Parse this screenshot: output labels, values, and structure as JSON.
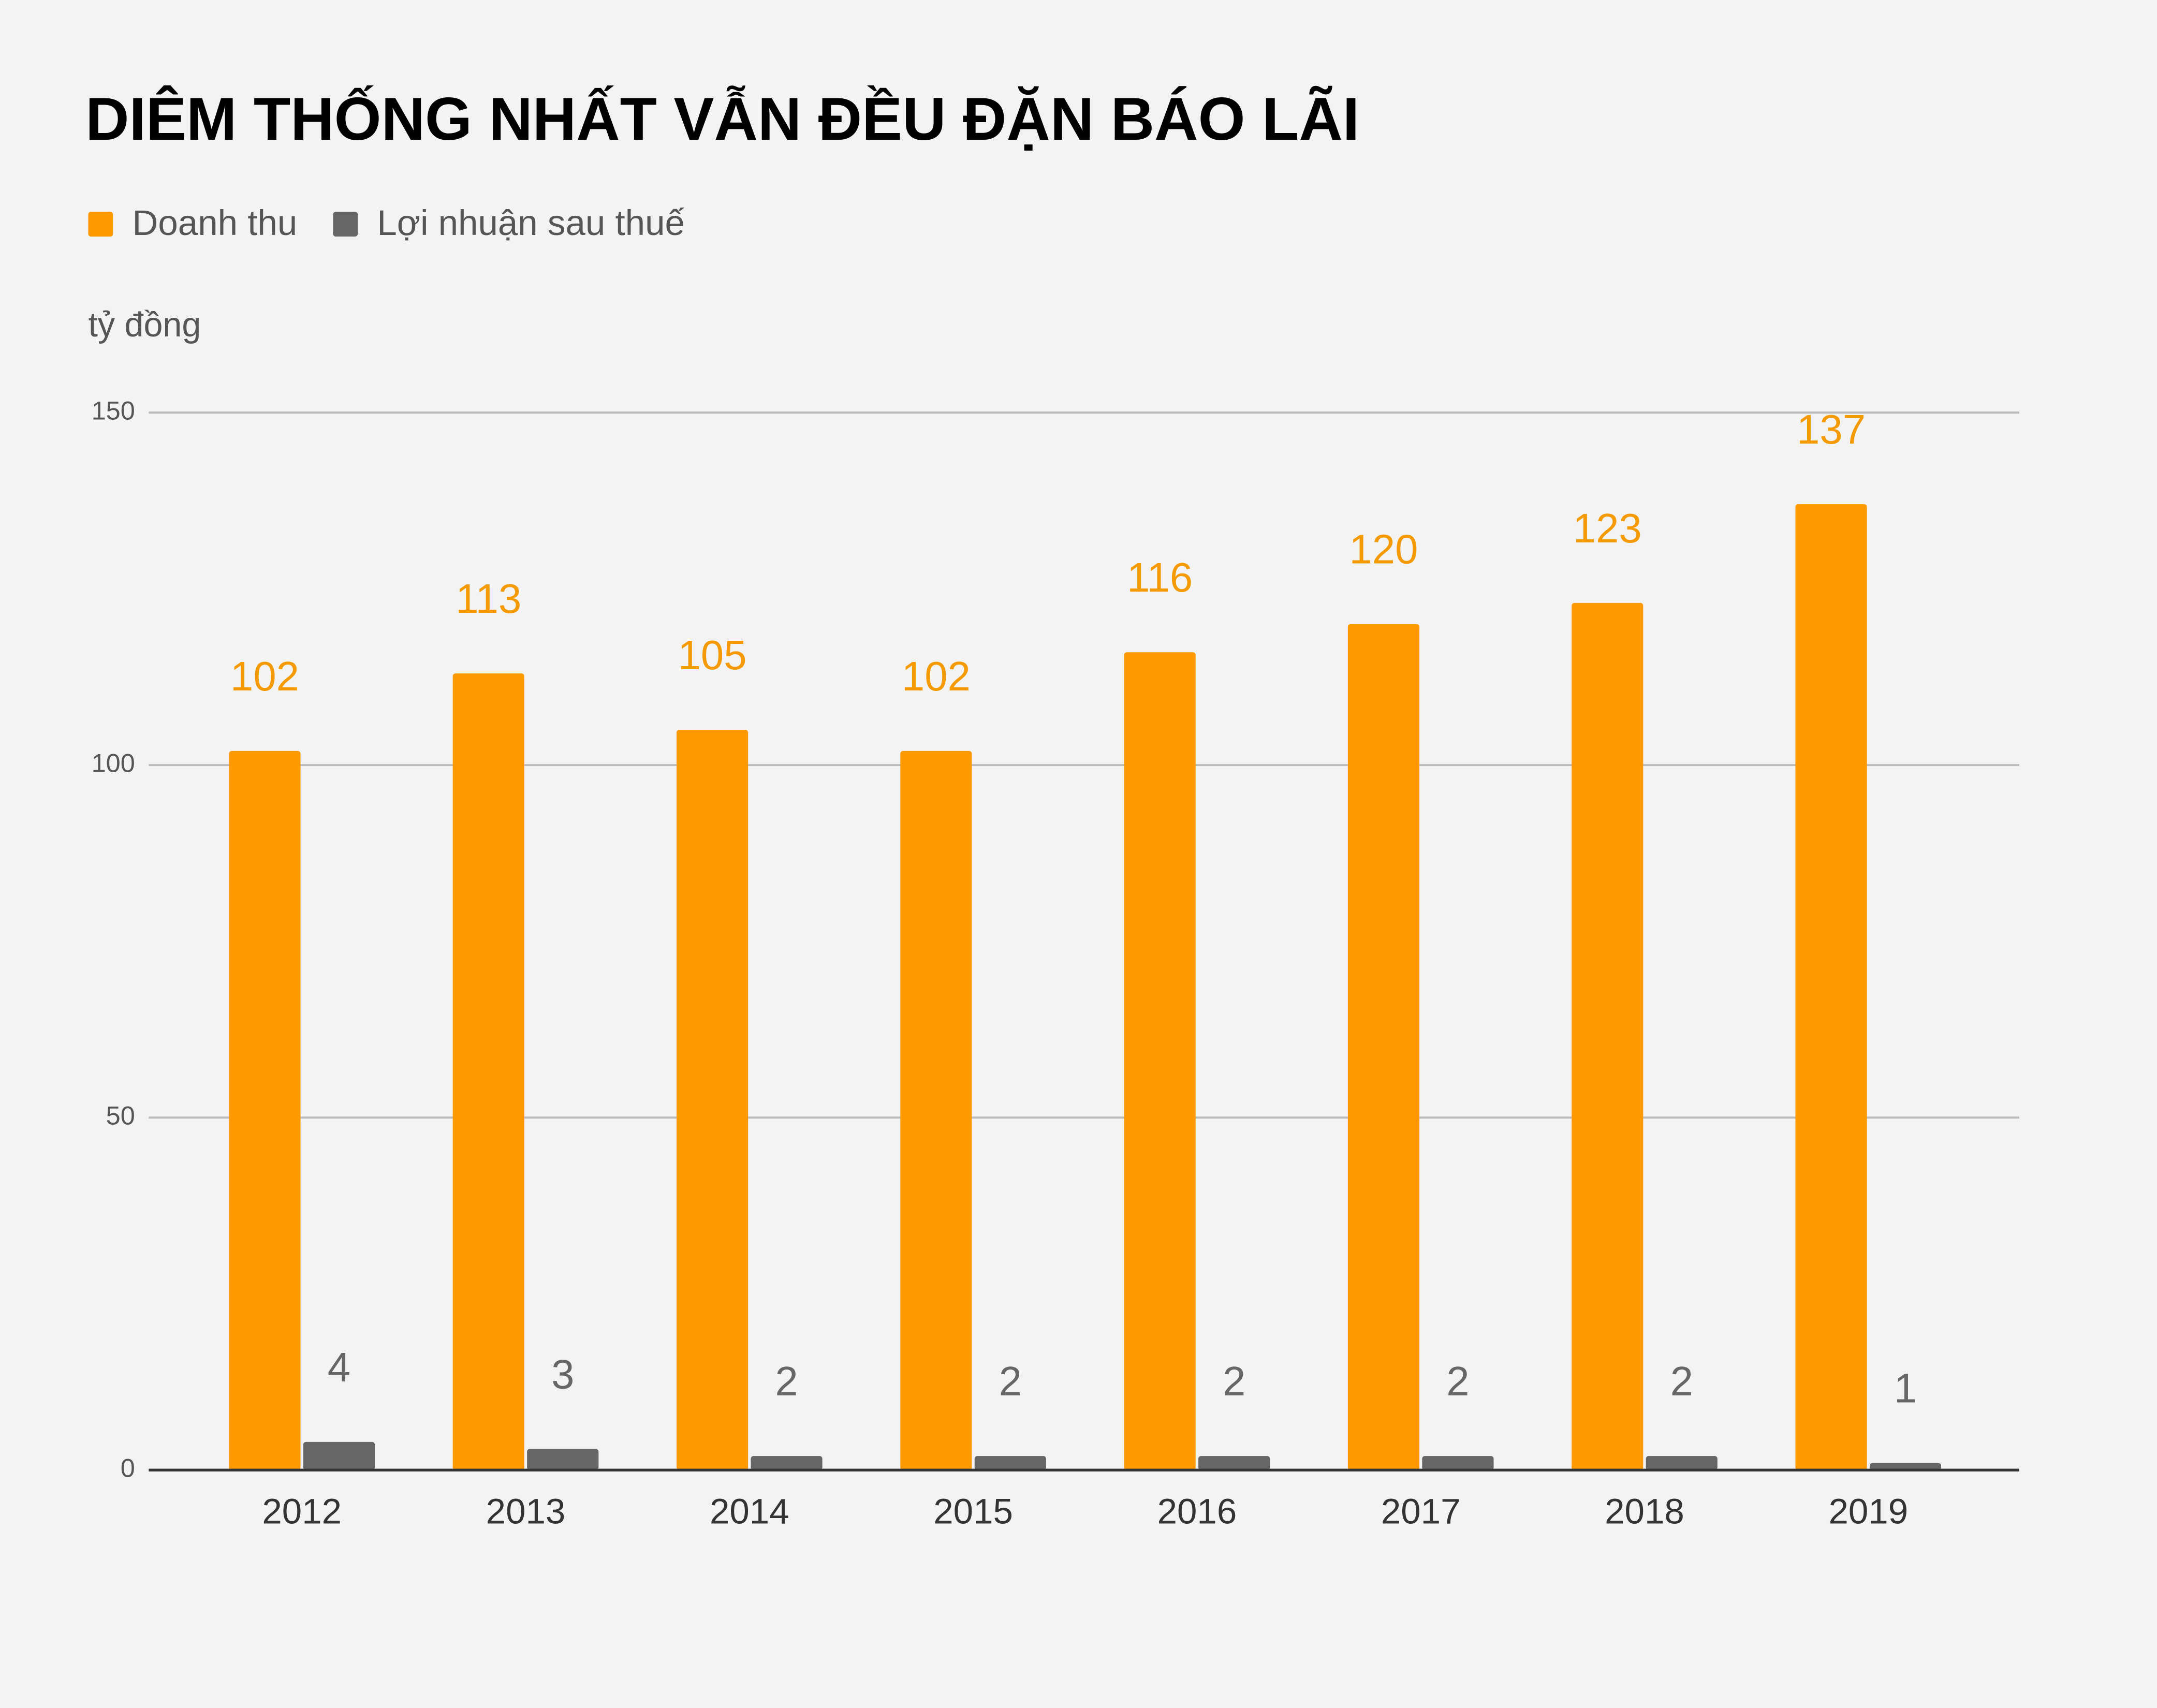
{
  "chart_data": {
    "type": "bar",
    "title": "DIÊM THỐNG NHẤT VẪN ĐỀU ĐẶN BÁO LÃI",
    "y_label": "tỷ đồng",
    "categories": [
      "2012",
      "2013",
      "2014",
      "2015",
      "2016",
      "2017",
      "2018",
      "2019"
    ],
    "series": [
      {
        "name": "Doanh thu",
        "color": "#ff9900",
        "values": [
          102,
          113,
          105,
          102,
          116,
          120,
          123,
          137
        ]
      },
      {
        "name": "Lợi nhuận sau thuế",
        "color": "#666666",
        "values": [
          4,
          3,
          2,
          2,
          2,
          2,
          2,
          1
        ]
      }
    ],
    "ylim": [
      0,
      150
    ],
    "yticks": [
      0,
      50,
      100,
      150
    ],
    "grid": true,
    "legend": "top-left"
  }
}
